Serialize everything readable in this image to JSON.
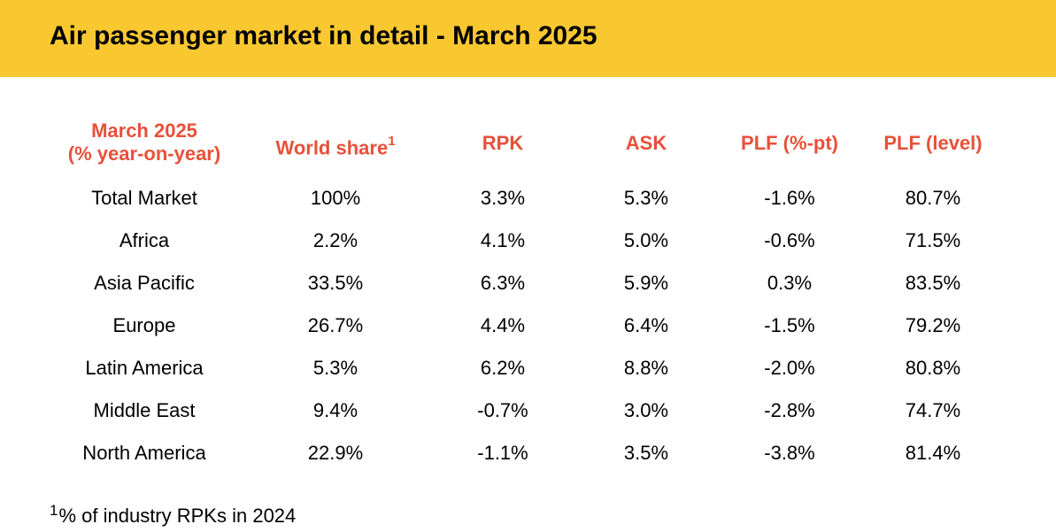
{
  "title": "Air passenger market in detail - March 2025",
  "colors": {
    "banner": "#f9c830",
    "header_text": "#e8503a"
  },
  "table": {
    "headers": [
      {
        "line1": "March 2025",
        "line2": "(% year-on-year)"
      },
      {
        "text": "World share",
        "sup": "1"
      },
      {
        "text": "RPK"
      },
      {
        "text": "ASK"
      },
      {
        "text": "PLF (%-pt)"
      },
      {
        "text": "PLF (level)"
      }
    ],
    "rows": [
      [
        "Total Market",
        "100%",
        "3.3%",
        "5.3%",
        "-1.6%",
        "80.7%"
      ],
      [
        "Africa",
        "2.2%",
        "4.1%",
        "5.0%",
        "-0.6%",
        "71.5%"
      ],
      [
        "Asia Pacific",
        "33.5%",
        "6.3%",
        "5.9%",
        "0.3%",
        "83.5%"
      ],
      [
        "Europe",
        "26.7%",
        "4.4%",
        "6.4%",
        "-1.5%",
        "79.2%"
      ],
      [
        "Latin America",
        "5.3%",
        "6.2%",
        "8.8%",
        "-2.0%",
        "80.8%"
      ],
      [
        "Middle East",
        "9.4%",
        "-0.7%",
        "3.0%",
        "-2.8%",
        "74.7%"
      ],
      [
        "North America",
        "22.9%",
        "-1.1%",
        "3.5%",
        "-3.8%",
        "81.4%"
      ]
    ]
  },
  "footnote": {
    "mark": "1",
    "text": "% of industry RPKs in 2024"
  }
}
